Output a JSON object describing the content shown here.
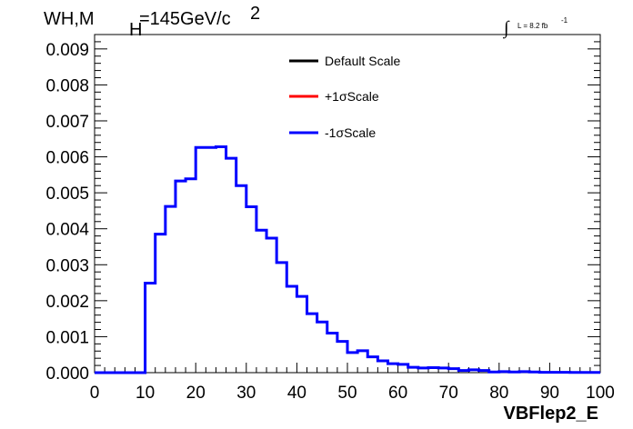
{
  "chart_data": {
    "type": "line",
    "style": "step-histogram",
    "title": {
      "main": "WH,M",
      "sub": "H",
      "rest": "=145GeV/c",
      "sup": "2"
    },
    "lumi": {
      "symbol": "∫",
      "label": "L = 8.2 fb",
      "sup": "-1"
    },
    "xlabel": "VBFlep2_E",
    "ylabel": "",
    "xlim": [
      0,
      100
    ],
    "ylim": [
      0,
      0.0094
    ],
    "x_ticks": [
      "0",
      "10",
      "20",
      "30",
      "40",
      "50",
      "60",
      "70",
      "80",
      "90",
      "100"
    ],
    "y_ticks": [
      "0.000",
      "0.001",
      "0.002",
      "0.003",
      "0.004",
      "0.005",
      "0.006",
      "0.007",
      "0.008",
      "0.009"
    ],
    "grid": false,
    "legend_position": "top-center",
    "legend": [
      {
        "label": "Default Scale",
        "color": "#000000"
      },
      {
        "label": "+1σScale",
        "color": "#ff0000"
      },
      {
        "label": "-1σScale",
        "color": "#0000ff"
      }
    ],
    "bin_width": 2,
    "bin_edges_start": 0,
    "series": [
      {
        "name": "-1σScale",
        "color": "#0000ff",
        "values": [
          0,
          0,
          0,
          0,
          0,
          0.00249,
          0.00385,
          0.00462,
          0.00533,
          0.00539,
          0.00626,
          0.00626,
          0.00628,
          0.00596,
          0.0052,
          0.00461,
          0.00396,
          0.00374,
          0.00306,
          0.0024,
          0.00212,
          0.00164,
          0.00141,
          0.0011,
          0.00087,
          0.00056,
          0.00061,
          0.00044,
          0.00033,
          0.00025,
          0.00023,
          0.00015,
          0.00013,
          0.00014,
          0.00013,
          0.00011,
          6e-05,
          8e-05,
          6e-05,
          2e-05,
          3e-05,
          2e-05,
          3e-05,
          2e-05,
          1e-05,
          1e-05,
          1e-05,
          5e-06,
          5e-06,
          5e-06
        ]
      }
    ]
  }
}
